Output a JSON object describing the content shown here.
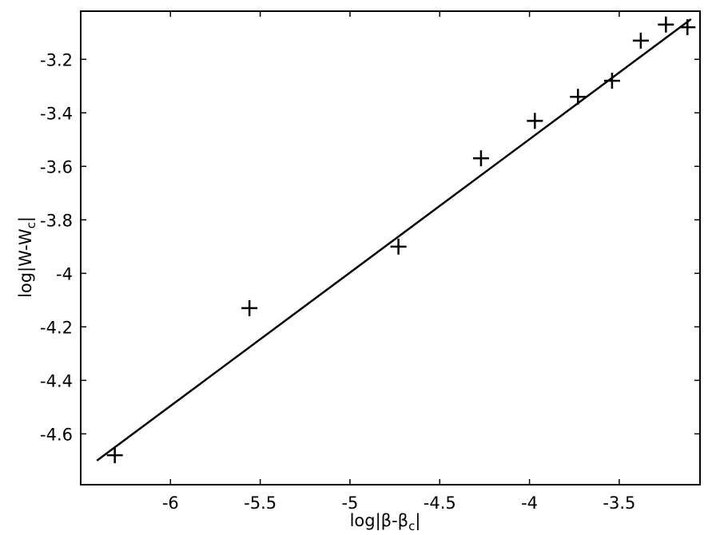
{
  "chart_data": {
    "type": "scatter",
    "title": "",
    "xlabel": "log|β-β",
    "xlabel_sub": "c",
    "xlabel_end": "|",
    "ylabel": "log|W-W",
    "ylabel_sub": "c",
    "ylabel_end": "|",
    "xlim": [
      -6.5,
      -3.05
    ],
    "ylim": [
      -4.79,
      -3.02
    ],
    "xticks": [
      -6,
      -5.5,
      -5,
      -4.5,
      -4,
      -3.5
    ],
    "xtick_labels": [
      "-6",
      "-5.5",
      "-5",
      "-4.5",
      "-4",
      "-3.5"
    ],
    "yticks": [
      -4.6,
      -4.4,
      -4.2,
      -4,
      -3.8,
      -3.6,
      -3.4,
      -3.2
    ],
    "ytick_labels": [
      "-4.6",
      "-4.4",
      "-4.2",
      "-4",
      "-3.8",
      "-3.6",
      "-3.4",
      "-3.2"
    ],
    "grid": false,
    "series": [
      {
        "marker": "plus",
        "x": [
          -6.31,
          -5.56,
          -4.73,
          -4.27,
          -3.97,
          -3.73,
          -3.54,
          -3.38,
          -3.24,
          -3.12
        ],
        "y": [
          -4.68,
          -4.13,
          -3.9,
          -3.57,
          -3.43,
          -3.34,
          -3.28,
          -3.13,
          -3.07,
          -3.08
        ]
      },
      {
        "line": "fit",
        "x": [
          -6.41,
          -3.1
        ],
        "y": [
          -4.7,
          -3.05
        ]
      }
    ],
    "colors": {
      "marker": "#000000",
      "line": "#000000",
      "axes": "#000000"
    }
  }
}
